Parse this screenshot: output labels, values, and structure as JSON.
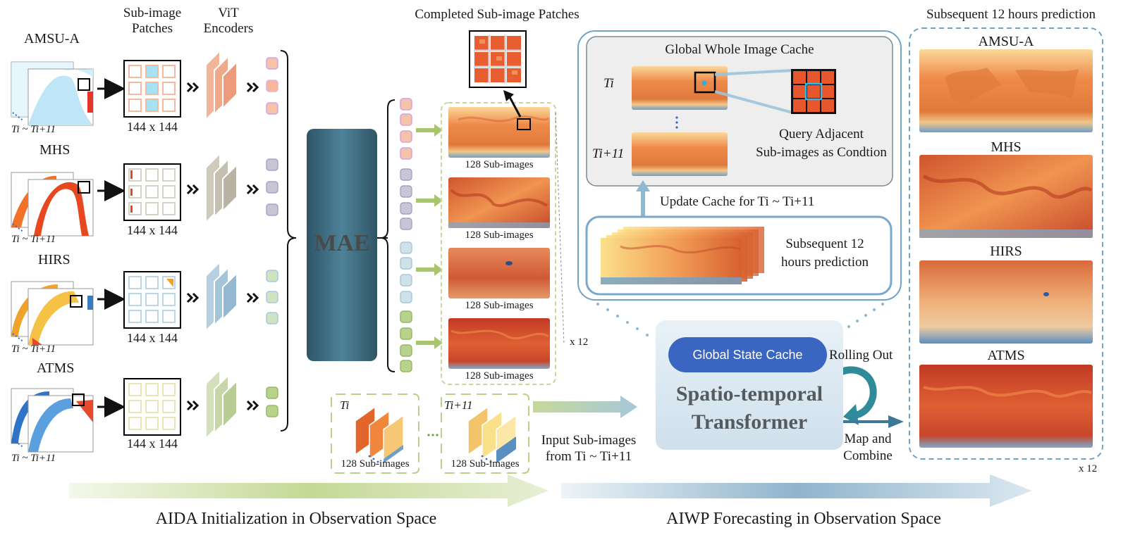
{
  "header": {
    "sub_image_patches": "Sub-image\nPatches",
    "vit_encoders": "ViT\nEncoders",
    "completed_patches": "Completed Sub-image Patches",
    "subsequent_prediction_title": "Subsequent 12 hours prediction"
  },
  "sensors": [
    {
      "name": "AMSU-A",
      "patch_size": "144 x 144",
      "time_range": "Ti ~ Ti+11",
      "color": "#f3b8a0"
    },
    {
      "name": "MHS",
      "patch_size": "144 x 144",
      "time_range": "Ti ~ Ti+11",
      "color": "#c9c4b6"
    },
    {
      "name": "HIRS",
      "patch_size": "144 x 144",
      "time_range": "Ti ~ Ti+11",
      "color": "#a8c8dc"
    },
    {
      "name": "ATMS",
      "patch_size": "144 x 144",
      "time_range": "Ti ~ Ti+11",
      "color": "#c8d8a8"
    }
  ],
  "mae": {
    "label": "MAE"
  },
  "sub_images": [
    {
      "label": "128 Sub-images"
    },
    {
      "label": "128 Sub-images"
    },
    {
      "label": "128 Sub-images"
    },
    {
      "label": "128 Sub-images"
    }
  ],
  "multiplier": "x 12",
  "cache": {
    "title": "Global Whole Image Cache",
    "t_start": "Ti",
    "t_end": "Ti+11",
    "query_label": "Query Adjacent\nSub-images as Condtion",
    "update_label": "Update Cache for Ti ~ Ti+11",
    "subsequent_label": "Subsequent 12\nhours prediction"
  },
  "transformer": {
    "global_state_cache": "Global State Cache",
    "title": "Spatio-temporal\nTransformer",
    "rolling_out": "Rolling Out",
    "map_combine": "Map and\nCombine"
  },
  "inputs": {
    "t_start": "Ti",
    "t_end": "Ti+11",
    "sub_images_label": "128 Sub-images",
    "input_label": "Input Sub-images\nfrom Ti ~ Ti+11"
  },
  "predictions": {
    "items": [
      "AMSU-A",
      "MHS",
      "HIRS",
      "ATMS"
    ],
    "multiplier": "x 12"
  },
  "footer": {
    "aida": "AIDA Initialization in Observation Space",
    "aiwp": "AIWP Forecasting in Observation Space"
  },
  "colors": {
    "heat_light": "#fbd89a",
    "heat_mid": "#ee8a4a",
    "heat_dark": "#c8472c",
    "blue_band": "#6ea0c8",
    "cache_border": "#6fa3c8",
    "gsc_blue": "#3a66c2",
    "green_arrow": "#a9c66e"
  }
}
